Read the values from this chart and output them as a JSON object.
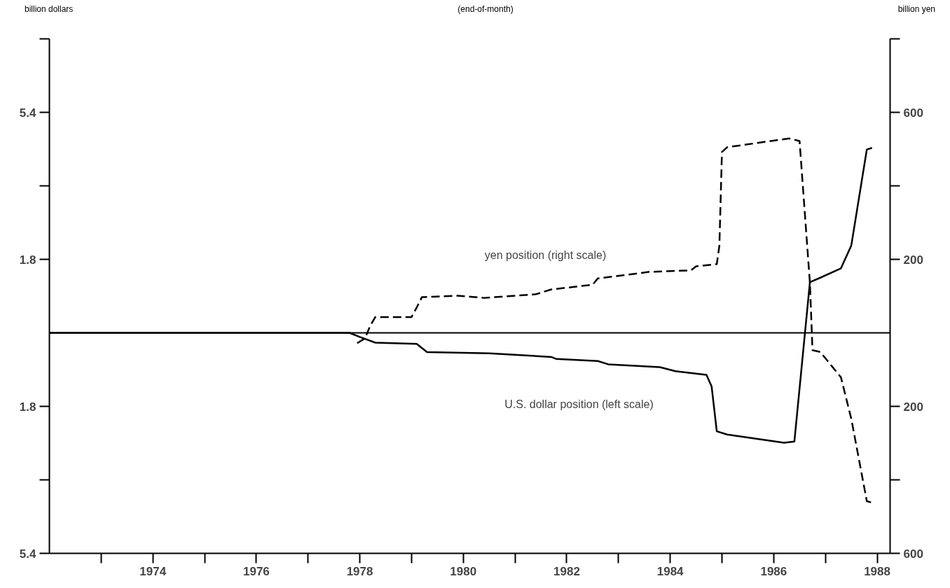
{
  "chart_data": {
    "type": "line",
    "title": "(end-of-month)",
    "ylabel": "billion dollars",
    "y2label": "billion yen",
    "xlim": [
      1972,
      1988.25
    ],
    "xticks": [
      {
        "value": 1973,
        "label": null
      },
      1974,
      {
        "value": 1975,
        "label": null
      },
      1976,
      {
        "value": 1977,
        "label": null
      },
      1978,
      {
        "value": 1979,
        "label": null
      },
      1980,
      {
        "value": 1981,
        "label": null
      },
      1982,
      {
        "value": 1983,
        "label": null
      },
      1984,
      {
        "value": 1985,
        "label": null
      },
      1986,
      {
        "value": 1987,
        "label": null
      },
      1988
    ],
    "ylim": [
      -5.4,
      7.2
    ],
    "yticks": [
      {
        "value": -5.4,
        "label": "5.4"
      },
      {
        "value": -3.6,
        "label": null
      },
      {
        "value": -1.8,
        "label": "1.8"
      },
      1.8,
      {
        "value": 3.6,
        "label": null
      },
      5.4,
      {
        "value": 7.2,
        "label": null
      }
    ],
    "y2lim": [
      -600,
      800
    ],
    "y2ticks": [
      {
        "value": -600,
        "label": "600"
      },
      {
        "value": -400,
        "label": null
      },
      {
        "value": -200,
        "label": "200"
      },
      200,
      {
        "value": 400,
        "label": null
      },
      600,
      {
        "value": 800,
        "label": null
      }
    ],
    "grid": false,
    "marker": "none",
    "ref_lines": [
      {
        "axis": "y",
        "value": 0,
        "label": null,
        "color": "#000000"
      }
    ],
    "annotations": [
      "yen position (right scale)",
      "U.S. dollar position (left scale)"
    ],
    "series": [
      {
        "color": "#000000",
        "line_style": "solid",
        "x": [
          1972,
          1977.8,
          1978.0,
          1978.3,
          1979.1,
          1979.3,
          1980.0,
          1980.5,
          1981.7,
          1981.8,
          1982.6,
          1982.8,
          1983.8,
          1984.1,
          1984.7,
          1984.8,
          1984.9,
          1985.1,
          1986.2,
          1986.4,
          1986.7,
          1986.9,
          1987.3,
          1987.5,
          1987.8,
          1987.9
        ],
        "values": [
          0,
          0,
          -0.1,
          -0.24,
          -0.27,
          -0.47,
          -0.49,
          -0.5,
          -0.59,
          -0.64,
          -0.69,
          -0.77,
          -0.84,
          -0.94,
          -1.03,
          -1.31,
          -2.41,
          -2.49,
          -2.69,
          -2.66,
          1.24,
          1.35,
          1.58,
          2.14,
          4.49,
          4.53
        ]
      },
      {
        "color": "#000000",
        "line_style": "dashed",
        "axis": "y2",
        "x": [
          1977.95,
          1978.1,
          1978.2,
          1978.3,
          1979.0,
          1979.1,
          1979.2,
          1979.9,
          1980.4,
          1981.4,
          1981.7,
          1982.5,
          1982.6,
          1983.6,
          1984.4,
          1984.5,
          1984.9,
          1984.95,
          1985.0,
          1985.1,
          1986.3,
          1986.5,
          1986.7,
          1986.75,
          1986.9,
          1987.3,
          1987.5,
          1987.8,
          1987.9
        ],
        "values": [
          -28,
          -15,
          19,
          43,
          43,
          69,
          97,
          101,
          95,
          105,
          118,
          131,
          148,
          166,
          170,
          181,
          187,
          237,
          492,
          505,
          529,
          522,
          136,
          -47,
          -52,
          -121,
          -234,
          -458,
          -462
        ]
      }
    ]
  }
}
